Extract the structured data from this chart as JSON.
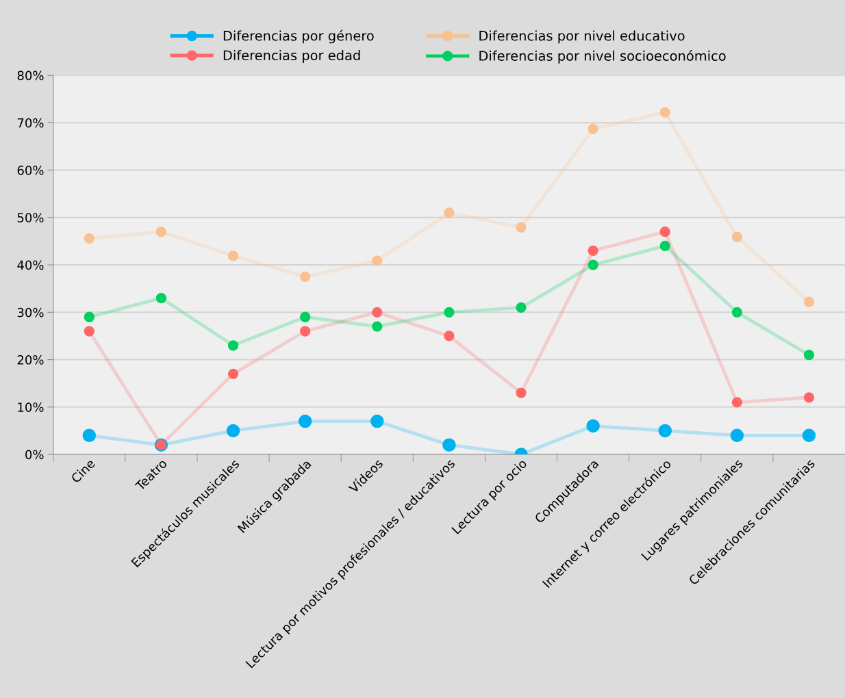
{
  "chart_data": {
    "type": "line",
    "categories": [
      "Cine",
      "Teatro",
      "Espectáculos musicales",
      "Música grabada",
      "Vídeos",
      "Lectura por motivos profesionales / educativos",
      "Lectura por ocio",
      "Computadora",
      "Internet y correo electrónico",
      "Lugares patrimoniales",
      "Celebraciones comunitarias"
    ],
    "series": [
      {
        "name": "Diferencias por género",
        "color": "#00b0f0",
        "values": [
          4,
          2,
          5,
          7,
          7,
          2,
          0,
          6,
          5,
          4,
          4
        ]
      },
      {
        "name": "Diferencias por edad",
        "color": "#ff6666",
        "values": [
          26,
          2,
          17,
          26,
          30,
          25,
          13,
          43,
          47,
          11,
          12
        ]
      },
      {
        "name": "Diferencias por nivel educativo",
        "color": "#fac090",
        "values": [
          45.6,
          47,
          41.9,
          37.5,
          40.9,
          51,
          47.9,
          68.7,
          72.2,
          45.9,
          32.2
        ]
      },
      {
        "name": "Diferencias por nivel socioeconómico",
        "color": "#00d060",
        "values": [
          29,
          33,
          23,
          29,
          27,
          30,
          31,
          40,
          44,
          30,
          21
        ]
      }
    ],
    "ylim": [
      0,
      80
    ],
    "yticks": [
      {
        "value": 0,
        "label": "0%"
      },
      {
        "value": 10,
        "label": "10%"
      },
      {
        "value": 20,
        "label": "20%"
      },
      {
        "value": 30,
        "label": "30%"
      },
      {
        "value": 40,
        "label": "40%"
      },
      {
        "value": 50,
        "label": "50%"
      },
      {
        "value": 60,
        "label": "60%"
      },
      {
        "value": 70,
        "label": "70%"
      },
      {
        "value": 80,
        "label": "80%"
      }
    ],
    "grid": "y",
    "legend": "top",
    "marker": "circle",
    "line_style": "solid"
  }
}
